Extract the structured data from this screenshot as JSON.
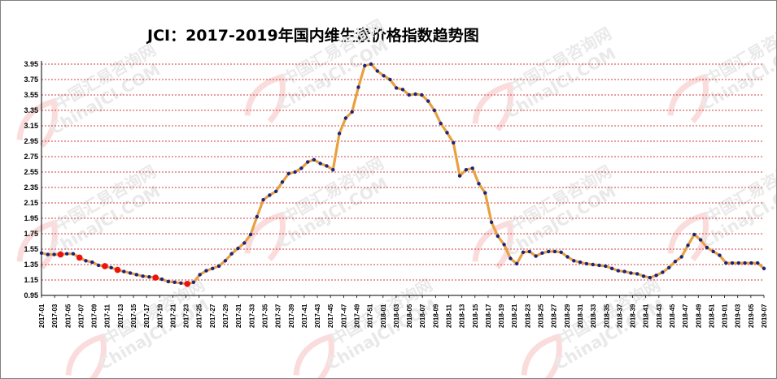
{
  "chart_data": {
    "type": "line",
    "title": "JCI：2017-2019年国内维生素价格指数趋势图",
    "xlabel": "",
    "ylabel": "",
    "ylim": [
      0.95,
      3.95
    ],
    "yticks": [
      "0.95",
      "1.15",
      "1.35",
      "1.55",
      "1.75",
      "1.95",
      "2.15",
      "2.35",
      "2.55",
      "2.75",
      "2.95",
      "3.15",
      "3.35",
      "3.55",
      "3.75",
      "3.95"
    ],
    "grid": true,
    "legend": "none",
    "xticks": [
      "2017-01",
      "2017-03",
      "2017-05",
      "2017-07",
      "2017-09",
      "2017-11",
      "2017-13",
      "2017-15",
      "2017-17",
      "2017-19",
      "2017-21",
      "2017-23",
      "2017-25",
      "2017-27",
      "2017-29",
      "2017-31",
      "2017-33",
      "2017-35",
      "2017-37",
      "2017-39",
      "2017-41",
      "2017-43",
      "2017-45",
      "2017-47",
      "2017-49",
      "2017-51",
      "2018-01",
      "2018-03",
      "2018-05",
      "2018-07",
      "2018-09",
      "2018-11",
      "2018-13",
      "2018-15",
      "2018-17",
      "2018-19",
      "2018-21",
      "2018-23",
      "2018-25",
      "2018-27",
      "2018-29",
      "2018-31",
      "2018-33",
      "2018-35",
      "2018-37",
      "2018-39",
      "2018-41",
      "2018-43",
      "2018-45",
      "2018-47",
      "2018-49",
      "2018-51",
      "2019-01",
      "2019-03",
      "2019-05",
      "2019-07"
    ],
    "series": [
      {
        "values": [
          1.5,
          1.48,
          1.48,
          1.48,
          1.49,
          1.49,
          1.44,
          1.4,
          1.38,
          1.34,
          1.33,
          1.31,
          1.28,
          1.26,
          1.24,
          1.22,
          1.2,
          1.19,
          1.18,
          1.16,
          1.13,
          1.12,
          1.11,
          1.1,
          1.12,
          1.22,
          1.27,
          1.3,
          1.33,
          1.4,
          1.49,
          1.56,
          1.63,
          1.74,
          1.97,
          2.19,
          2.25,
          2.3,
          2.42,
          2.53,
          2.55,
          2.6,
          2.68,
          2.71,
          2.66,
          2.63,
          2.58,
          3.05,
          3.25,
          3.33,
          3.65,
          3.93,
          3.95,
          3.86,
          3.8,
          3.75,
          3.64,
          3.62,
          3.55,
          3.56,
          3.55,
          3.47,
          3.35,
          3.18,
          3.06,
          2.93,
          2.5,
          2.58,
          2.6,
          2.4,
          2.28,
          1.9,
          1.72,
          1.61,
          1.43,
          1.36,
          1.51,
          1.52,
          1.46,
          1.5,
          1.52,
          1.52,
          1.51,
          1.45,
          1.4,
          1.38,
          1.36,
          1.35,
          1.34,
          1.33,
          1.3,
          1.27,
          1.26,
          1.24,
          1.23,
          1.2,
          1.18,
          1.21,
          1.25,
          1.31,
          1.39,
          1.45,
          1.6,
          1.74,
          1.67,
          1.57,
          1.52,
          1.47,
          1.37,
          1.37,
          1.37,
          1.37,
          1.37,
          1.37,
          1.3
        ],
        "highlight_indices": [
          3,
          6,
          10,
          12,
          18,
          23
        ]
      }
    ]
  },
  "watermark": {
    "lines": [
      "中国汇易咨询网",
      "ChinaJCI.COM"
    ]
  },
  "colors": {
    "line": "#e8a040",
    "marker": "#1a237e",
    "highlight_marker": "#ee1111",
    "grid": "#c00000",
    "watermark_text": "#e9e9e9",
    "watermark_arc": "#fbdcdc"
  }
}
